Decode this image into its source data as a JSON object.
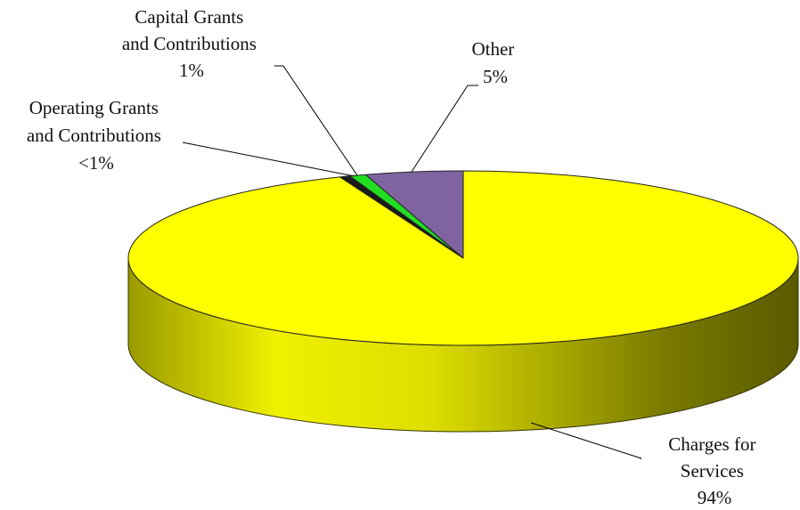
{
  "chart_data": {
    "type": "pie",
    "style": "3d",
    "title": "",
    "slices": [
      {
        "name": "Charges for Services",
        "lines": [
          "Charges for",
          "Services"
        ],
        "label_value": "94%",
        "value": 94,
        "color": "#ffff00"
      },
      {
        "name": "Operating Grants and Contributions",
        "lines": [
          "Operating Grants",
          "and Contributions"
        ],
        "label_value": "<1%",
        "value": 0.5,
        "color": "#1a1a1a"
      },
      {
        "name": "Capital Grants and Contributions",
        "lines": [
          "Capital Grants",
          "and Contributions"
        ],
        "label_value": "1%",
        "value": 0.8,
        "color": "#22dd22"
      },
      {
        "name": "Other",
        "lines": [
          "Other"
        ],
        "label_value": "5%",
        "value": 4.7,
        "color": "#8064a2"
      }
    ],
    "legend": "none"
  }
}
